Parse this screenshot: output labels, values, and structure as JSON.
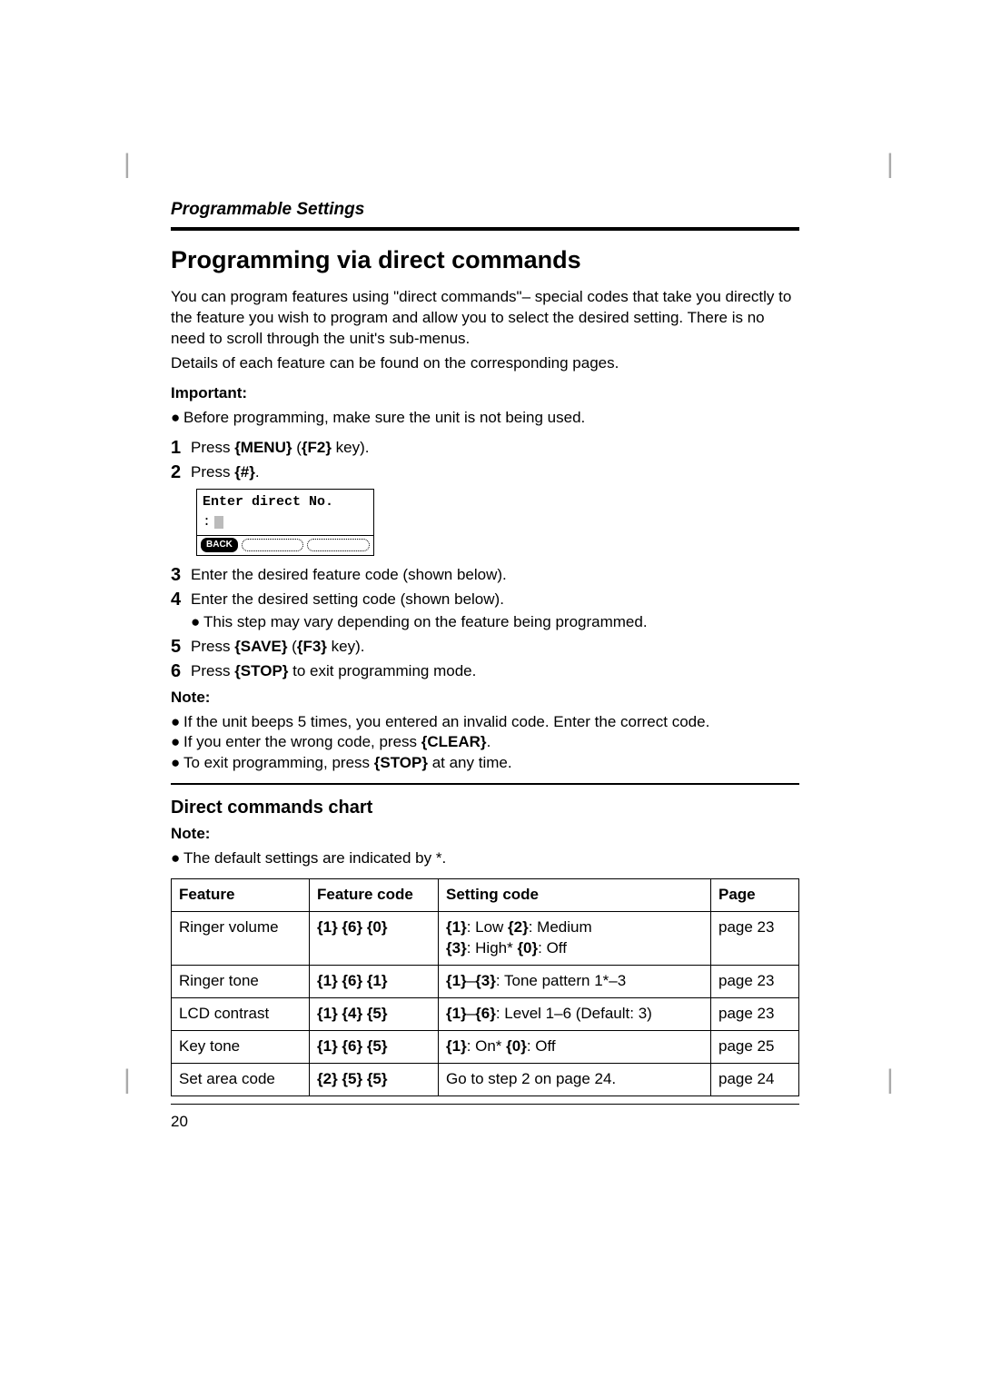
{
  "header": {
    "section": "Programmable Settings"
  },
  "title": "Programming via direct commands",
  "intro": [
    "You can program features using \"direct commands\"– special codes that take you directly to the feature you wish to program and allow you to select the desired setting. There is no need to scroll through the unit's sub-menus.",
    "Details of each feature can be found on the corresponding pages."
  ],
  "important": {
    "label": "Important:",
    "items": [
      "Before programming, make sure the unit is not being used."
    ]
  },
  "steps": [
    {
      "n": "1",
      "pre": "Press ",
      "k1": "{MENU}",
      "mid": " (",
      "k2": "{F2}",
      "post": " key)."
    },
    {
      "n": "2",
      "pre": "Press ",
      "k1": "{#}",
      "mid": "",
      "k2": "",
      "post": "."
    },
    {
      "n": "3",
      "pre": "Enter the desired feature code (shown below).",
      "k1": "",
      "mid": "",
      "k2": "",
      "post": ""
    },
    {
      "n": "4",
      "pre": "Enter the desired setting code (shown below).",
      "k1": "",
      "mid": "",
      "k2": "",
      "post": "",
      "sub": "This step may vary depending on the feature being programmed."
    },
    {
      "n": "5",
      "pre": "Press ",
      "k1": "{SAVE}",
      "mid": " (",
      "k2": "{F3}",
      "post": " key)."
    },
    {
      "n": "6",
      "pre": "Press ",
      "k1": "{STOP}",
      "mid": "",
      "k2": "",
      "post": " to exit programming mode."
    }
  ],
  "lcd": {
    "line1": "Enter direct No.",
    "colon": ":",
    "back": "BACK"
  },
  "note1": {
    "label": "Note:",
    "items": [
      {
        "t1": "If the unit beeps 5 times, you entered an invalid code. Enter the correct code.",
        "k": "",
        "t2": ""
      },
      {
        "t1": "If you enter the wrong code, press ",
        "k": "{CLEAR}",
        "t2": "."
      },
      {
        "t1": "To exit programming, press ",
        "k": "{STOP}",
        "t2": " at any time."
      }
    ]
  },
  "chart": {
    "heading": "Direct commands chart",
    "note_label": "Note:",
    "note_item": "The default settings are indicated by *.",
    "columns": [
      "Feature",
      "Feature code",
      "Setting code",
      "Page"
    ],
    "rows": [
      {
        "feature": "Ringer volume",
        "fcode": "{1} {6} {0}",
        "scode": "<b>{1}</b>: Low <b>{2}</b>: Medium<br><b>{3}</b>: High* <b>{0}</b>: Off",
        "page": "page 23"
      },
      {
        "feature": "Ringer tone",
        "fcode": "{1} {6} {1}",
        "scode": "<b>{1}</b>–<b>{3}</b>: Tone pattern 1*–3",
        "page": "page 23"
      },
      {
        "feature": "LCD contrast",
        "fcode": "{1} {4} {5}",
        "scode": "<b>{1}</b>–<b>{6}</b>: Level 1–6 (Default: 3)",
        "page": "page 23"
      },
      {
        "feature": "Key tone",
        "fcode": "{1} {6} {5}",
        "scode": "<b>{1}</b>: On* <b>{0}</b>: Off",
        "page": "page 25"
      },
      {
        "feature": "Set area code",
        "fcode": "{2} {5} {5}",
        "scode": "Go to step 2 on page 24.",
        "page": "page 24"
      }
    ]
  },
  "page_number": "20"
}
